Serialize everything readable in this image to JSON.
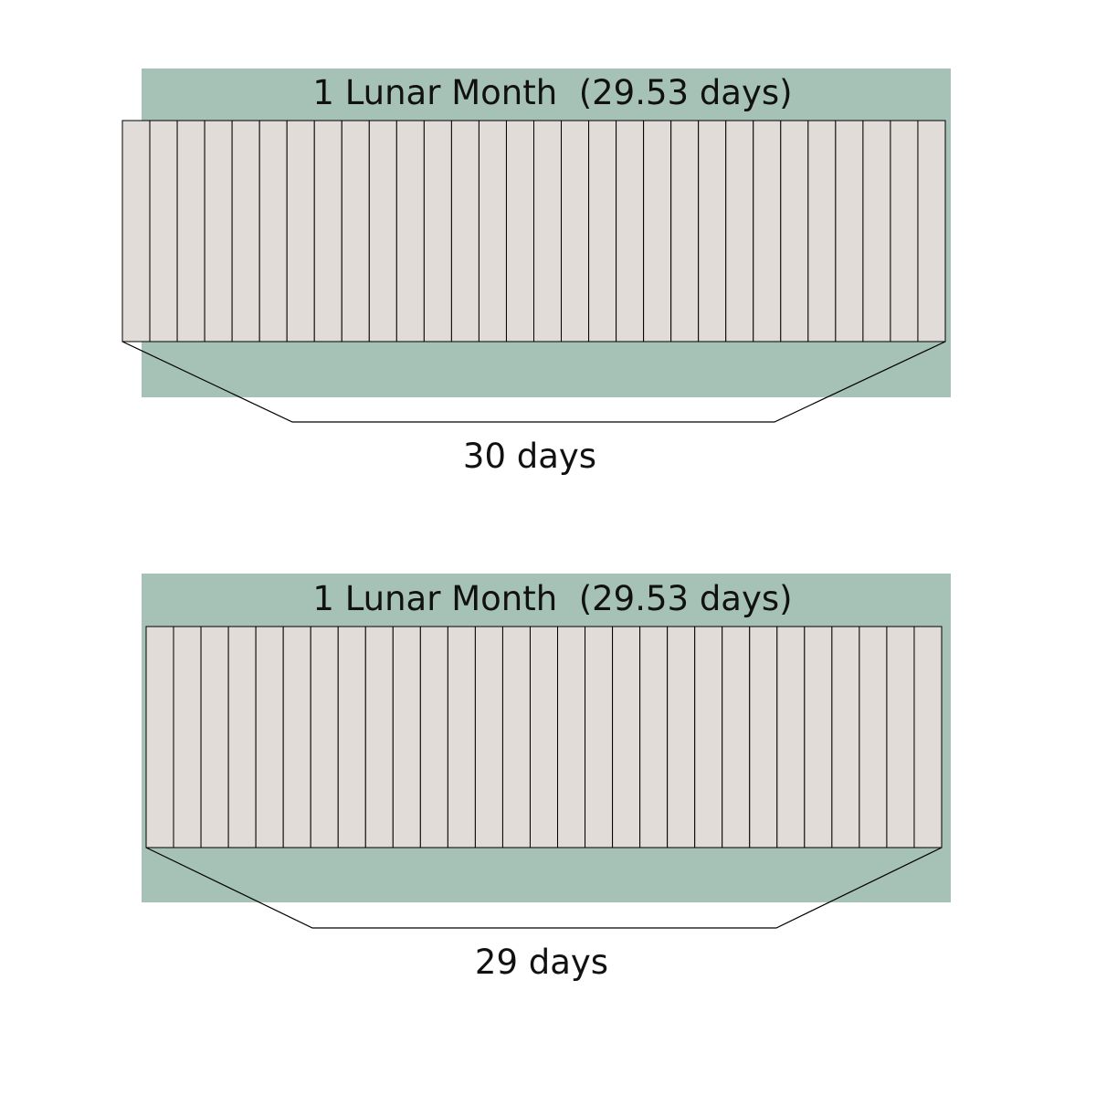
{
  "panels": [
    {
      "title": "1 Lunar Month  (29.53 days)",
      "day_count": 30,
      "caption": "30 days",
      "colors": {
        "band": "#a6c1b6",
        "cell": "#e1dcd8",
        "line": "#000000"
      }
    },
    {
      "title": "1 Lunar Month  (29.53 days)",
      "day_count": 29,
      "caption": "29 days",
      "colors": {
        "band": "#a6c1b6",
        "cell": "#e1dcd8",
        "line": "#000000"
      }
    }
  ]
}
